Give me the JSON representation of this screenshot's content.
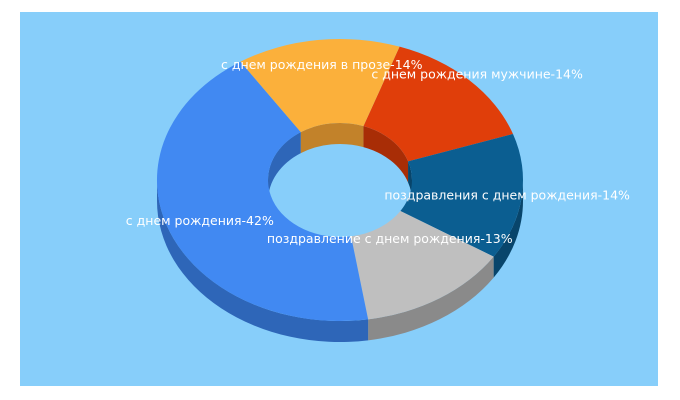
{
  "colors": {
    "background": "#87cefa",
    "label": "#ffffff"
  },
  "chart_data": {
    "type": "pie",
    "style": "3d-donut",
    "title": "",
    "slices": [
      {
        "label": "с днем рождения мужчине",
        "value": 14,
        "percent_label": "14%",
        "color": "#e03e0a",
        "side_color": "#a82d06"
      },
      {
        "label": "поздравления с днем рождения",
        "value": 14,
        "percent_label": "14%",
        "color": "#0b5e91",
        "side_color": "#08456b"
      },
      {
        "label": "поздравление с днем рождения",
        "value": 13,
        "percent_label": "13%",
        "color": "#bfbfbf",
        "side_color": "#8a8a8a"
      },
      {
        "label": "с днем рождения",
        "value": 42,
        "percent_label": "42%",
        "color": "#4189f2",
        "side_color": "#2e66b8"
      },
      {
        "label": "с днем рождения в прозе",
        "value": 14,
        "percent_label": "14%",
        "color": "#fbb03b",
        "side_color": "#c2822a"
      }
    ]
  }
}
